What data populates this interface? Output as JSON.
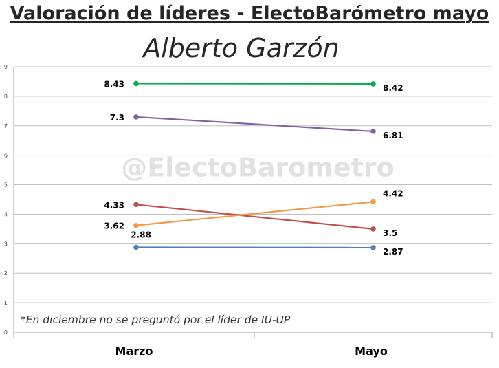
{
  "title": "Valoración de líderes - ElectoBarómetro mayo",
  "subtitle": "Alberto Garzón",
  "watermark": "@ElectoBarometro",
  "note": "*En diciembre no se preguntó por el líder de IU-UP",
  "chart_data": {
    "type": "line",
    "title": "Valoración de líderes - ElectoBarómetro mayo",
    "subtitle": "Alberto Garzón",
    "categories": [
      "Marzo",
      "Mayo"
    ],
    "ylim": [
      0,
      9
    ],
    "yticks": [
      "0",
      "1",
      "2",
      "3",
      "4",
      "5",
      "6",
      "7",
      "8",
      "9"
    ],
    "grid": true,
    "legend": "none",
    "series": [
      {
        "color": "#00b050",
        "values": [
          8.43,
          8.42
        ],
        "labels": [
          "8.43",
          "8.42"
        ]
      },
      {
        "color": "#8064a2",
        "values": [
          7.3,
          6.81
        ],
        "labels": [
          "7.3",
          "6.81"
        ]
      },
      {
        "color": "#c0504d",
        "values": [
          4.33,
          3.5
        ],
        "labels": [
          "4.33",
          "3.5"
        ]
      },
      {
        "color": "#f79646",
        "values": [
          3.62,
          4.42
        ],
        "labels": [
          "3.62",
          "4.42"
        ]
      },
      {
        "color": "#4f81bd",
        "values": [
          2.88,
          2.87
        ],
        "labels": [
          "2.88",
          "2.87"
        ]
      }
    ]
  }
}
